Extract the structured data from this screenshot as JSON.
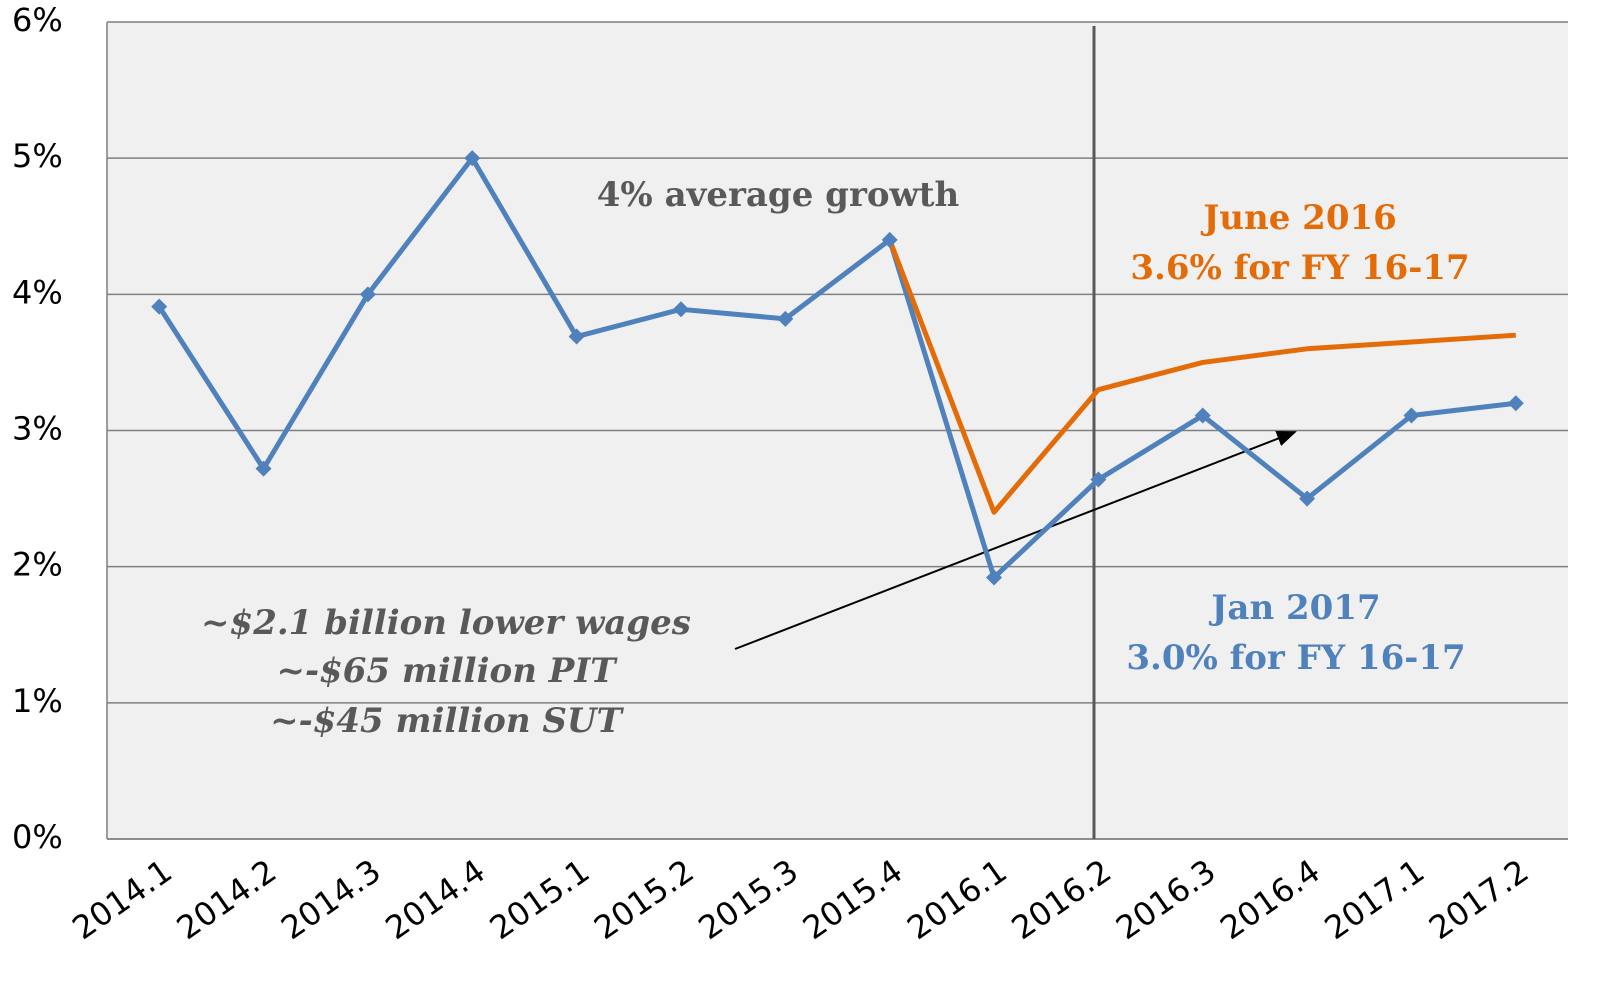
{
  "chart_data": {
    "type": "line",
    "categories": [
      "2014.1",
      "2014.2",
      "2014.3",
      "2014.4",
      "2015.1",
      "2015.2",
      "2015.3",
      "2015.4",
      "2016.1",
      "2016.2",
      "2016.3",
      "2016.4",
      "2017.1",
      "2017.2"
    ],
    "series": [
      {
        "name": "Jan 2017",
        "color": "#4f81bd",
        "marker": "diamond",
        "values": [
          3.91,
          2.72,
          4.0,
          5.0,
          3.69,
          3.89,
          3.82,
          4.4,
          1.92,
          2.64,
          3.11,
          2.5,
          3.11,
          3.2
        ]
      },
      {
        "name": "June 2016",
        "color": "#e36c09",
        "marker": "none",
        "values": [
          null,
          null,
          null,
          null,
          null,
          null,
          null,
          4.4,
          2.4,
          3.3,
          3.5,
          3.6,
          3.65,
          3.7
        ]
      }
    ],
    "ylim": [
      0,
      6
    ],
    "yticks": [
      {
        "value": 0,
        "label": "0%"
      },
      {
        "value": 1,
        "label": "1%"
      },
      {
        "value": 2,
        "label": "2%"
      },
      {
        "value": 3,
        "label": "3%"
      },
      {
        "value": 4,
        "label": "4%"
      },
      {
        "value": 5,
        "label": "5%"
      },
      {
        "value": 6,
        "label": "6%"
      }
    ],
    "grid": true,
    "annotations": [
      "4% average growth",
      "June 2016",
      "3.6% for FY 16-17",
      "Jan 2017",
      "3.0% for FY 16-17",
      "~$2.1 billion lower wages",
      "~-$65 million PIT",
      "~-$45 million SUT"
    ]
  }
}
